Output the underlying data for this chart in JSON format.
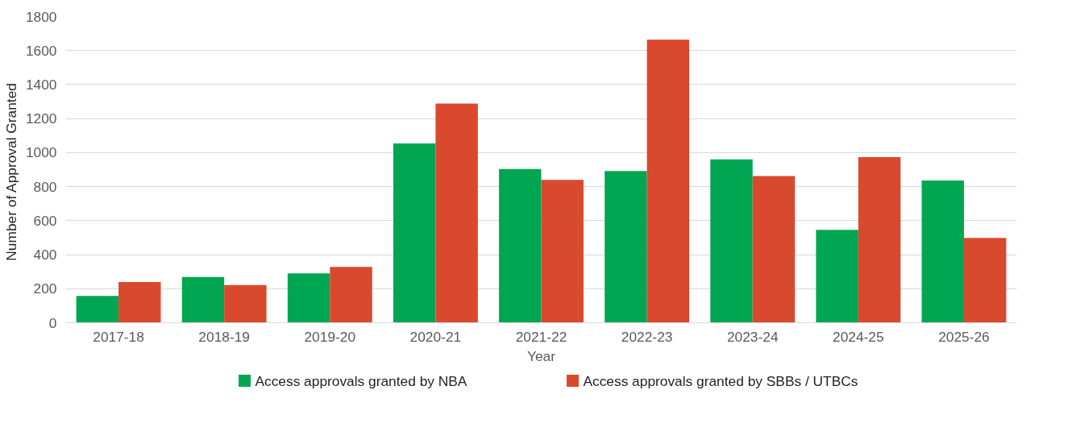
{
  "chart_data": {
    "type": "bar",
    "xlabel": "Year",
    "ylabel": "Number of  Approval Granted",
    "categories": [
      "2017-18",
      "2018-19",
      "2019-20",
      "2020-21",
      "2021-22",
      "2022-23",
      "2023-24",
      "2024-25",
      "2025-26"
    ],
    "series": [
      {
        "name": "Access approvals granted by NBA",
        "color": "#00a651",
        "values": [
          158,
          269,
          290,
          1054,
          904,
          892,
          960,
          546,
          836
        ]
      },
      {
        "name": "Access approvals granted by SBBs / UTBCs",
        "color": "#d9492e",
        "values": [
          239,
          222,
          328,
          1288,
          840,
          1664,
          862,
          973,
          499
        ]
      }
    ],
    "ylim": [
      0,
      1800
    ],
    "yticks": [
      0,
      200,
      400,
      600,
      800,
      1000,
      1200,
      1400,
      1600,
      1800
    ],
    "grid": "y",
    "legend": "bottom"
  }
}
